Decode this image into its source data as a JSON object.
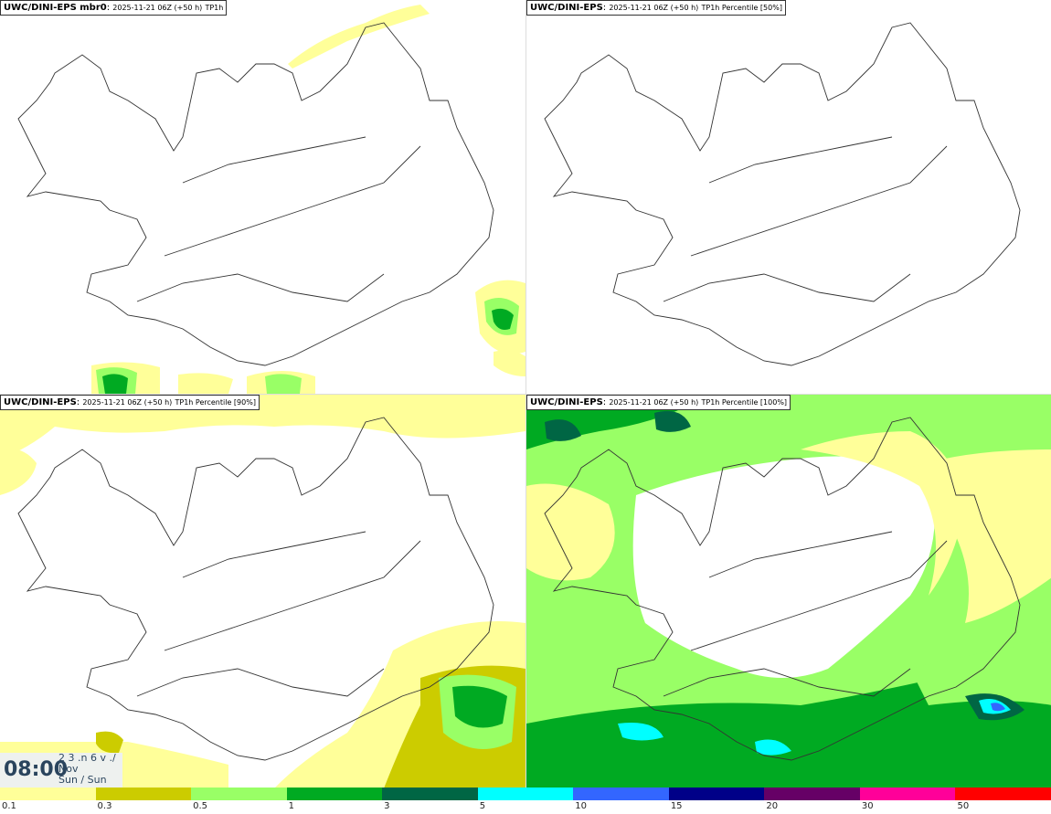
{
  "panels": [
    {
      "model": "UWC/DINI-EPS mbr0",
      "run": "2025-11-21 06Z (+50 h)",
      "field": "TP1h"
    },
    {
      "model": "UWC/DINI-EPS",
      "run": "2025-11-21 06Z (+50 h)",
      "field": "TP1h Percentile [50%]"
    },
    {
      "model": "UWC/DINI-EPS",
      "run": "2025-11-21 06Z (+50 h)",
      "field": "TP1h Percentile [90%]"
    },
    {
      "model": "UWC/DINI-EPS",
      "run": "2025-11-21 06Z (+50 h)",
      "field": "TP1h Percentile [100%]"
    }
  ],
  "valid_time": {
    "time": "08:00",
    "day": "2 3 .n 6 v ./",
    "month": "Nov",
    "weekday": "Sun / Sun"
  },
  "legend": {
    "colors": [
      "#ffff99",
      "#cccc00",
      "#99ff66",
      "#00aa22",
      "#006644",
      "#00ffff",
      "#3366ff",
      "#000088",
      "#660066",
      "#ff0099",
      "#ff0000"
    ],
    "labels": [
      "0.1",
      "0.3",
      "0.5",
      "1",
      "3",
      "5",
      "10",
      "15",
      "20",
      "30",
      "50"
    ]
  }
}
